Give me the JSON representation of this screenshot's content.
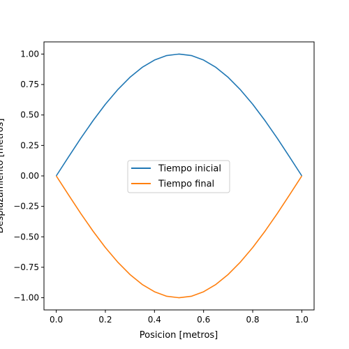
{
  "chart_data": {
    "type": "line",
    "title": "",
    "xlabel": "Posicion [metros]",
    "ylabel": "Desplazamiento [metros]",
    "xlim": [
      -0.05,
      1.05
    ],
    "ylim": [
      -1.1,
      1.1
    ],
    "xticks": [
      "0.0",
      "0.2",
      "0.4",
      "0.6",
      "0.8",
      "1.0"
    ],
    "xtick_values": [
      0.0,
      0.2,
      0.4,
      0.6,
      0.8,
      1.0
    ],
    "yticks": [
      "1.00",
      "0.75",
      "0.50",
      "0.25",
      "0.00",
      "−0.25",
      "−0.50",
      "−0.75",
      "−1.00"
    ],
    "ytick_values": [
      1.0,
      0.75,
      0.5,
      0.25,
      0.0,
      -0.25,
      -0.5,
      -0.75,
      -1.0
    ],
    "grid": false,
    "legend_position": "center",
    "x": [
      0.0,
      0.05,
      0.1,
      0.15,
      0.2,
      0.25,
      0.3,
      0.35,
      0.4,
      0.45,
      0.5,
      0.55,
      0.6,
      0.65,
      0.7,
      0.75,
      0.8,
      0.85,
      0.9,
      0.95,
      1.0
    ],
    "series": [
      {
        "name": "Tiempo inicial",
        "color": "#1f77b4",
        "values": [
          0.0,
          0.156,
          0.309,
          0.454,
          0.588,
          0.707,
          0.809,
          0.891,
          0.951,
          0.988,
          1.0,
          0.988,
          0.951,
          0.891,
          0.809,
          0.707,
          0.588,
          0.454,
          0.309,
          0.156,
          0.0
        ]
      },
      {
        "name": "Tiempo final",
        "color": "#ff7f0e",
        "values": [
          0.0,
          -0.156,
          -0.309,
          -0.454,
          -0.588,
          -0.707,
          -0.809,
          -0.891,
          -0.951,
          -0.988,
          -1.0,
          -0.988,
          -0.951,
          -0.891,
          -0.809,
          -0.707,
          -0.588,
          -0.454,
          -0.309,
          -0.156,
          0.0
        ]
      }
    ]
  }
}
